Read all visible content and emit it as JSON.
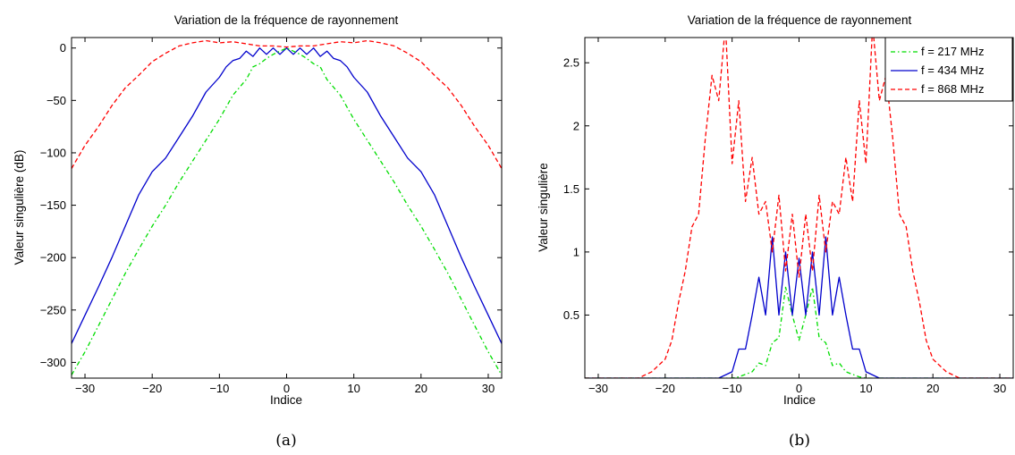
{
  "chart_data": [
    {
      "type": "line",
      "title": "Variation de la fréquence de rayonnement",
      "xlabel": "Indice",
      "ylabel": "Valeur singulière (dB)",
      "caption": "(a)",
      "xlim": [
        -32,
        32
      ],
      "ylim": [
        -315,
        10
      ],
      "xticks": [
        "−30",
        "−20",
        "−10",
        "0",
        "10",
        "20",
        "30"
      ],
      "xtick_values": [
        -30,
        -20,
        -10,
        0,
        10,
        20,
        30
      ],
      "yticks": [
        "0",
        "−50",
        "−100",
        "−150",
        "−200",
        "−250",
        "−300"
      ],
      "ytick_values": [
        0,
        -50,
        -100,
        -150,
        -200,
        -250,
        -300
      ],
      "grid": false,
      "series": [
        {
          "color": "#ff0000",
          "dash": "dashed",
          "x": [
            -32,
            -30,
            -28,
            -26,
            -24,
            -22,
            -20,
            -18,
            -16,
            -14,
            -12,
            -10,
            -8,
            -6,
            -4,
            -2,
            0,
            2,
            4,
            6,
            8,
            10,
            12,
            14,
            16,
            18,
            20,
            22,
            24,
            26,
            28,
            30,
            32
          ],
          "y": [
            -115,
            -93,
            -75,
            -55,
            -38,
            -26,
            -13,
            -5,
            2,
            5,
            7,
            5,
            6,
            4,
            2,
            2,
            1,
            2,
            2,
            4,
            6,
            5,
            7,
            5,
            2,
            -5,
            -13,
            -26,
            -38,
            -55,
            -75,
            -93,
            -115
          ]
        },
        {
          "color": "#0000cc",
          "dash": "solid",
          "x": [
            -32,
            -30,
            -28,
            -26,
            -24,
            -22,
            -20,
            -18,
            -16,
            -14,
            -12,
            -10,
            -9,
            -8,
            -7,
            -6,
            -5,
            -4,
            -3,
            -2,
            -1,
            0,
            1,
            2,
            3,
            4,
            5,
            6,
            7,
            8,
            9,
            10,
            12,
            14,
            16,
            18,
            20,
            22,
            24,
            26,
            28,
            30,
            32
          ],
          "y": [
            -282,
            -255,
            -228,
            -200,
            -170,
            -140,
            -118,
            -105,
            -85,
            -65,
            -42,
            -28,
            -18,
            -12,
            -10,
            -3,
            -8,
            0,
            -6,
            0,
            -6,
            0,
            -6,
            0,
            -6,
            0,
            -8,
            -3,
            -10,
            -12,
            -18,
            -28,
            -42,
            -65,
            -85,
            -105,
            -118,
            -140,
            -170,
            -200,
            -228,
            -255,
            -282
          ]
        },
        {
          "color": "#00dd00",
          "dash": "dashdot",
          "x": [
            -32,
            -30,
            -28,
            -26,
            -24,
            -22,
            -20,
            -18,
            -16,
            -14,
            -12,
            -10,
            -8,
            -6,
            -5,
            -4,
            -3,
            -2,
            -1,
            0,
            1,
            2,
            3,
            4,
            5,
            6,
            8,
            10,
            12,
            14,
            16,
            18,
            20,
            22,
            24,
            26,
            28,
            30,
            32
          ],
          "y": [
            -312,
            -290,
            -265,
            -240,
            -215,
            -192,
            -170,
            -150,
            -128,
            -108,
            -88,
            -68,
            -45,
            -30,
            -18,
            -15,
            -10,
            -6,
            -3,
            0,
            -3,
            -6,
            -10,
            -15,
            -18,
            -30,
            -45,
            -68,
            -88,
            -108,
            -128,
            -150,
            -170,
            -192,
            -215,
            -240,
            -265,
            -290,
            -312
          ]
        }
      ]
    },
    {
      "type": "line",
      "title": "Variation de la fréquence de rayonnement",
      "xlabel": "Indice",
      "ylabel": "Valeur singulière",
      "caption": "(b)",
      "xlim": [
        -32,
        32
      ],
      "ylim": [
        0,
        2.7
      ],
      "xticks": [
        "−30",
        "−20",
        "−10",
        "0",
        "10",
        "20",
        "30"
      ],
      "xtick_values": [
        -30,
        -20,
        -10,
        0,
        10,
        20,
        30
      ],
      "yticks": [
        "0.5",
        "1",
        "1.5",
        "2",
        "2.5"
      ],
      "ytick_values": [
        0.5,
        1,
        1.5,
        2,
        2.5
      ],
      "grid": false,
      "legend_position": "top-right",
      "series": [
        {
          "name": "f = 217 MHz",
          "color": "#00dd00",
          "dash": "dashdot",
          "x": [
            -32,
            -10,
            -9,
            -8,
            -7,
            -6,
            -5,
            -4,
            -3,
            -2,
            -1,
            0,
            1,
            2,
            3,
            4,
            5,
            6,
            7,
            8,
            9,
            10,
            32
          ],
          "y": [
            0,
            0,
            0.01,
            0.03,
            0.05,
            0.12,
            0.1,
            0.28,
            0.32,
            0.72,
            0.5,
            0.3,
            0.5,
            0.72,
            0.32,
            0.28,
            0.1,
            0.12,
            0.05,
            0.03,
            0.01,
            0,
            0
          ]
        },
        {
          "name": "f = 434 MHz",
          "color": "#0000cc",
          "dash": "solid",
          "x": [
            -32,
            -12,
            -10,
            -9,
            -8,
            -7,
            -6,
            -5,
            -4,
            -3,
            -2,
            -1,
            0,
            1,
            2,
            3,
            4,
            5,
            6,
            7,
            8,
            9,
            10,
            12,
            32
          ],
          "y": [
            0,
            0,
            0.05,
            0.23,
            0.23,
            0.5,
            0.8,
            0.5,
            1.12,
            0.5,
            1.0,
            0.5,
            0.95,
            0.5,
            1.0,
            0.5,
            1.12,
            0.5,
            0.8,
            0.5,
            0.23,
            0.23,
            0.05,
            0,
            0
          ]
        },
        {
          "name": "f = 868 MHz",
          "color": "#ff0000",
          "dash": "dashed",
          "x": [
            -32,
            -24,
            -22,
            -20,
            -19,
            -18,
            -17,
            -16,
            -15,
            -14,
            -13,
            -12,
            -11,
            -10,
            -9,
            -8,
            -7,
            -6,
            -5,
            -4,
            -3,
            -2,
            -1,
            0,
            1,
            2,
            3,
            4,
            5,
            6,
            7,
            8,
            9,
            10,
            11,
            12,
            13,
            14,
            15,
            16,
            17,
            18,
            19,
            20,
            22,
            24,
            32
          ],
          "y": [
            0,
            0,
            0.05,
            0.15,
            0.3,
            0.6,
            0.85,
            1.2,
            1.3,
            1.9,
            2.4,
            2.2,
            2.8,
            1.7,
            2.2,
            1.4,
            1.75,
            1.3,
            1.4,
            1.0,
            1.45,
            0.85,
            1.3,
            0.8,
            1.3,
            0.85,
            1.45,
            1.0,
            1.4,
            1.3,
            1.75,
            1.4,
            2.2,
            1.7,
            2.8,
            2.2,
            2.4,
            1.9,
            1.3,
            1.2,
            0.85,
            0.6,
            0.3,
            0.15,
            0.05,
            0,
            0
          ]
        }
      ]
    }
  ]
}
